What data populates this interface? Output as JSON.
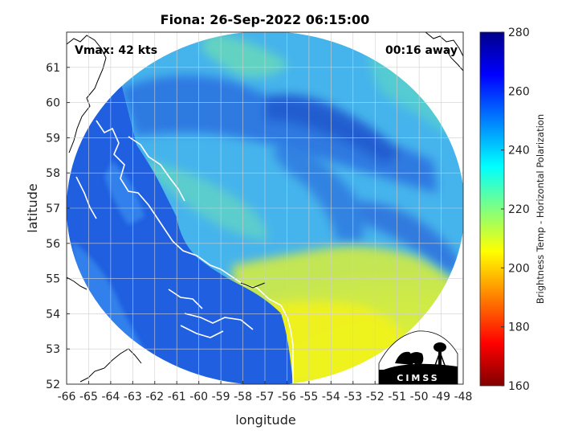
{
  "title": "Fiona: 26-Sep-2022 06:15:00",
  "annotations": {
    "vmax": "Vmax: 42 kts",
    "time_away": "00:16 away"
  },
  "chart_data": {
    "type": "heatmap",
    "xlabel": "longitude",
    "ylabel": "latitude",
    "xlim": [
      -66,
      -48
    ],
    "ylim": [
      52,
      62
    ],
    "xticks": [
      -66,
      -65,
      -64,
      -63,
      -62,
      -61,
      -60,
      -59,
      -58,
      -57,
      -56,
      -55,
      -54,
      -53,
      -52,
      -51,
      -50,
      -49,
      -48
    ],
    "yticks": [
      52,
      53,
      54,
      55,
      56,
      57,
      58,
      59,
      60,
      61
    ],
    "grid": true,
    "colorbar": {
      "label": "Brightness Temp - Horizontal Polarization",
      "range": [
        160,
        280
      ],
      "ticks": [
        160,
        180,
        200,
        220,
        240,
        260,
        280
      ],
      "colors": [
        "#800000",
        "#ff0000",
        "#ff8000",
        "#ffff00",
        "#80ff80",
        "#00ffff",
        "#0080ff",
        "#0000ff",
        "#00008b"
      ]
    },
    "swath": {
      "shape": "circle",
      "center_lon": -56.9,
      "center_lat": 57.0,
      "colors": {
        "land": "#1f5fe0",
        "ocean_north": "#46b4ec",
        "ocean_south": "#e4ef2a"
      }
    }
  },
  "logo": {
    "text": "CIMSS"
  }
}
